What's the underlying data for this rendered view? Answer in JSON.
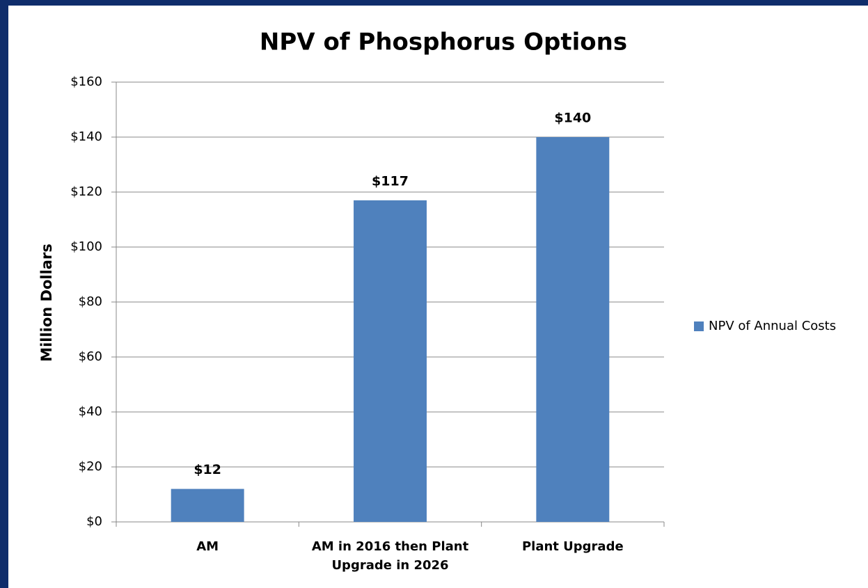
{
  "chart_data": {
    "type": "bar",
    "title": "NPV of Phosphorus Options",
    "ylabel": "Million Dollars",
    "categories": [
      "AM",
      "AM in 2016 then Plant Upgrade in 2026",
      "Plant Upgrade"
    ],
    "series": [
      {
        "name": "NPV of Annual Costs",
        "color": "#4f81bd",
        "values": [
          12,
          117,
          140
        ],
        "value_labels": [
          "$12",
          "$117",
          "$140"
        ]
      }
    ],
    "ylim": [
      0,
      160
    ],
    "yticks": [
      {
        "value": 0,
        "label": "$0"
      },
      {
        "value": 20,
        "label": "$20"
      },
      {
        "value": 40,
        "label": "$40"
      },
      {
        "value": 60,
        "label": "$60"
      },
      {
        "value": 80,
        "label": "$80"
      },
      {
        "value": 100,
        "label": "$100"
      },
      {
        "value": 120,
        "label": "$120"
      },
      {
        "value": 140,
        "label": "$140"
      },
      {
        "value": 160,
        "label": "$160"
      }
    ],
    "grid": true,
    "legend": "right"
  }
}
